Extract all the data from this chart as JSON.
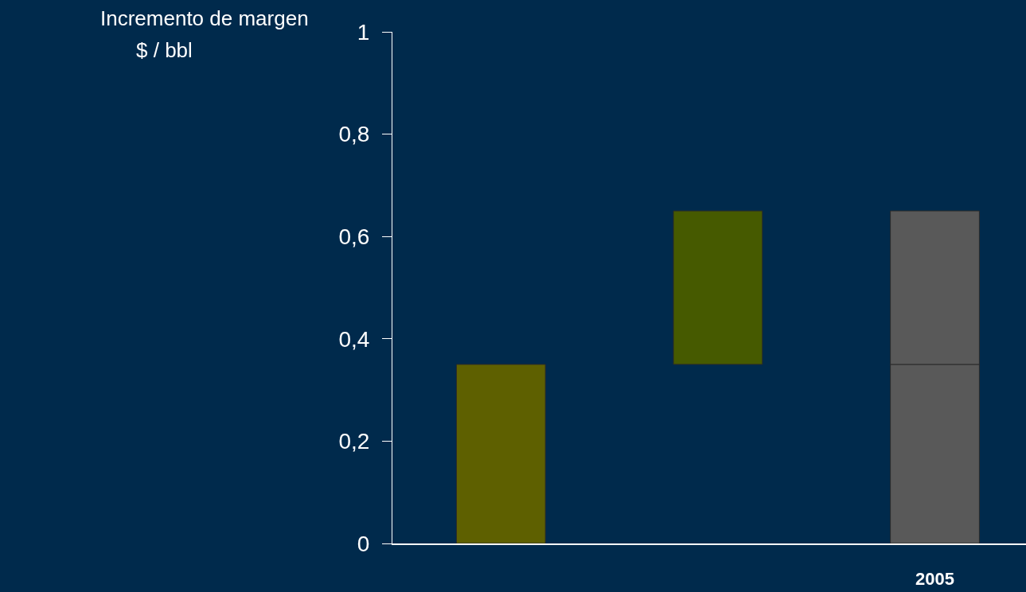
{
  "chart_data": {
    "type": "bar",
    "ylabel": "Incremento de margen",
    "annotations": [
      "$ / bbl"
    ],
    "categories": [
      null,
      null,
      "2005"
    ],
    "series": [
      {
        "colors": [
          "#5e6000",
          "#465a00",
          "#595959"
        ],
        "base": [
          0,
          0.35,
          0
        ],
        "values": [
          0.35,
          0.3,
          0.35
        ]
      },
      {
        "color": "#595959",
        "base": [
          null,
          null,
          0.35
        ],
        "values": [
          null,
          null,
          0.3
        ]
      }
    ],
    "ylim": [
      0,
      1
    ],
    "yticks": [
      {
        "value": 0,
        "label": "0"
      },
      {
        "value": 0.2,
        "label": "0,2"
      },
      {
        "value": 0.4,
        "label": "0,4"
      },
      {
        "value": 0.6,
        "label": "0,6"
      },
      {
        "value": 0.8,
        "label": "0,8"
      },
      {
        "value": 1,
        "label": "1"
      }
    ],
    "grid": false
  }
}
